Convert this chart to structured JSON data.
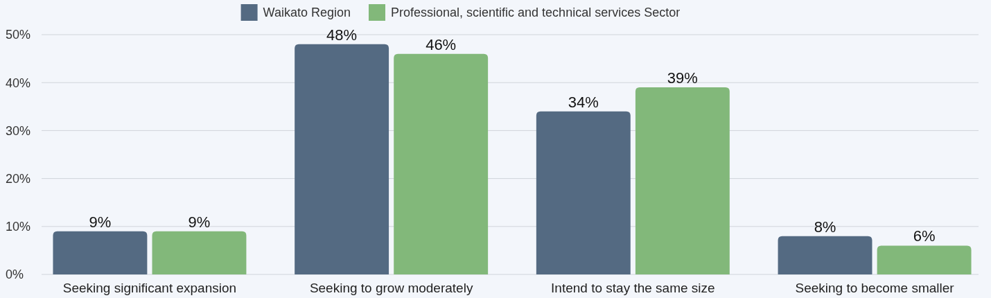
{
  "chart_data": {
    "type": "bar",
    "categories": [
      "Seeking significant expansion",
      "Seeking to grow moderately",
      "Intend to stay the same size",
      "Seeking to become smaller"
    ],
    "series": [
      {
        "name": "Waikato Region",
        "color": "#546a82",
        "values": [
          9,
          48,
          34,
          8
        ],
        "value_labels": [
          "9%",
          "48%",
          "34%",
          "8%"
        ]
      },
      {
        "name": "Professional, scientific and technical services Sector",
        "color": "#82b87a",
        "values": [
          9,
          46,
          39,
          6
        ],
        "value_labels": [
          "9%",
          "46%",
          "39%",
          "6%"
        ]
      }
    ],
    "ylim": [
      0,
      50
    ],
    "yticks": [
      {
        "value": 0,
        "label": "0%"
      },
      {
        "value": 10,
        "label": "10%"
      },
      {
        "value": 20,
        "label": "20%"
      },
      {
        "value": 30,
        "label": "30%"
      },
      {
        "value": 40,
        "label": "40%"
      },
      {
        "value": 50,
        "label": "50%"
      }
    ],
    "grid": "y",
    "legend": "top"
  }
}
